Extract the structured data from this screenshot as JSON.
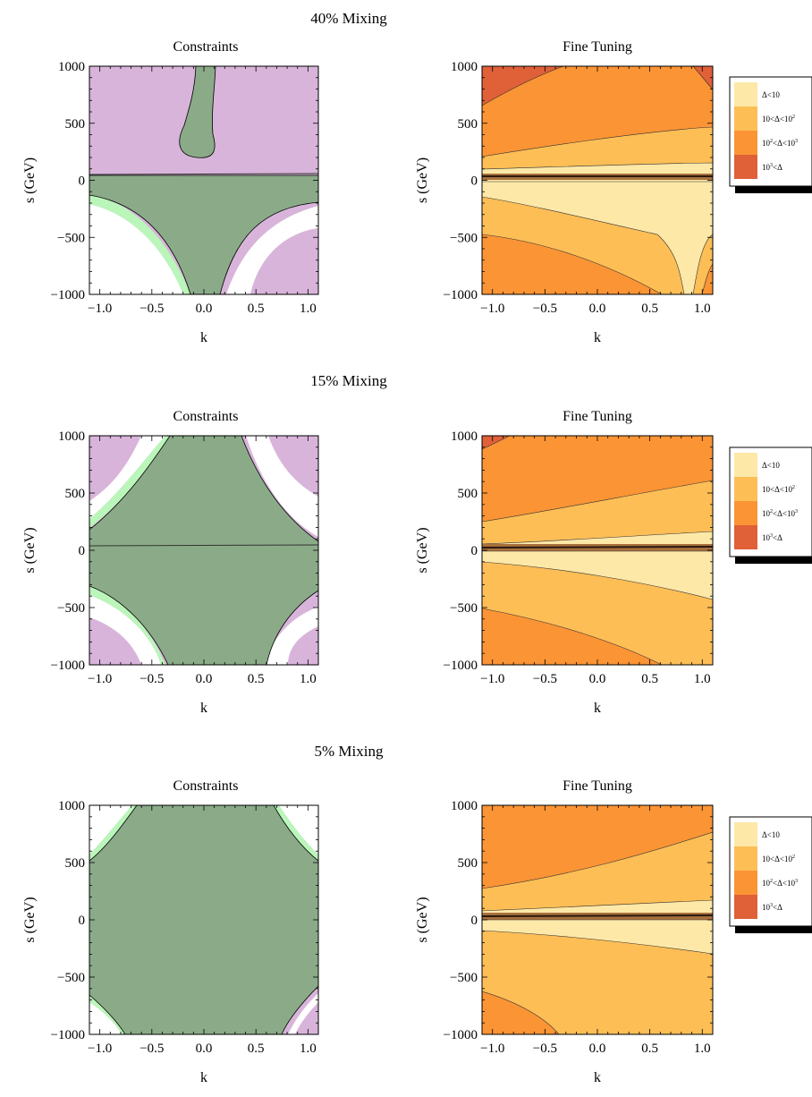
{
  "colors": {
    "constraint_excluded": "#d8b4da",
    "constraint_light": "#baf5b9",
    "constraint_allowed": "#8bab88",
    "ft_lt10": "#fde8a8",
    "ft_10_100": "#fdbe56",
    "ft_100_1000": "#fb9434",
    "ft_gt1000": "#e06038"
  },
  "chart_data": [
    {
      "type": "contour",
      "row_title": "40% Mixing",
      "panels": [
        {
          "title": "Constraints",
          "xlabel": "k",
          "ylabel": "s (GeV)",
          "xlim": [
            -1.1,
            1.1
          ],
          "ylim": [
            -1000,
            1000
          ],
          "xticks": [
            "−1.0",
            "−0.5",
            "0.0",
            "0.5",
            "1.0"
          ],
          "yticks": [
            "−1000",
            "−500",
            "0",
            "500",
            "1000"
          ]
        },
        {
          "title": "Fine Tuning",
          "xlabel": "k",
          "ylabel": "s (GeV)",
          "xlim": [
            -1.1,
            1.1
          ],
          "ylim": [
            -1000,
            1000
          ],
          "xticks": [
            "−1.0",
            "−0.5",
            "0.0",
            "0.5",
            "1.0"
          ],
          "yticks": [
            "−1000",
            "−500",
            "0",
            "500",
            "1000"
          ],
          "legend": [
            "Δ<10",
            "10<Δ<10",
            "10",
            "<Δ<10",
            "10",
            "<Δ"
          ]
        }
      ]
    },
    {
      "type": "contour",
      "row_title": "15% Mixing",
      "panels": [
        {
          "title": "Constraints",
          "xlabel": "k",
          "ylabel": "s (GeV)",
          "xlim": [
            -1.1,
            1.1
          ],
          "ylim": [
            -1000,
            1000
          ],
          "xticks": [
            "−1.0",
            "−0.5",
            "0.0",
            "0.5",
            "1.0"
          ],
          "yticks": [
            "−1000",
            "−500",
            "0",
            "500",
            "1000"
          ]
        },
        {
          "title": "Fine Tuning",
          "xlabel": "k",
          "ylabel": "s (GeV)",
          "xlim": [
            -1.1,
            1.1
          ],
          "ylim": [
            -1000,
            1000
          ],
          "xticks": [
            "−1.0",
            "−0.5",
            "0.0",
            "0.5",
            "1.0"
          ],
          "yticks": [
            "−1000",
            "−500",
            "0",
            "500",
            "1000"
          ],
          "legend": [
            "Δ<10",
            "10<Δ<10",
            "10",
            "<Δ<10",
            "10",
            "<Δ"
          ]
        }
      ]
    },
    {
      "type": "contour",
      "row_title": "5% Mixing",
      "panels": [
        {
          "title": "Constraints",
          "xlabel": "k",
          "ylabel": "s (GeV)",
          "xlim": [
            -1.1,
            1.1
          ],
          "ylim": [
            -1000,
            1000
          ],
          "xticks": [
            "−1.0",
            "−0.5",
            "0.0",
            "0.5",
            "1.0"
          ],
          "yticks": [
            "−1000",
            "−500",
            "0",
            "500",
            "1000"
          ]
        },
        {
          "title": "Fine Tuning",
          "xlabel": "k",
          "ylabel": "s (GeV)",
          "xlim": [
            -1.1,
            1.1
          ],
          "ylim": [
            -1000,
            1000
          ],
          "xticks": [
            "−1.0",
            "−0.5",
            "0.0",
            "0.5",
            "1.0"
          ],
          "yticks": [
            "−1000",
            "−500",
            "0",
            "500",
            "1000"
          ],
          "legend": [
            "Δ<10",
            "10<Δ<10",
            "10",
            "<Δ<10",
            "10",
            "<Δ"
          ]
        }
      ]
    }
  ]
}
